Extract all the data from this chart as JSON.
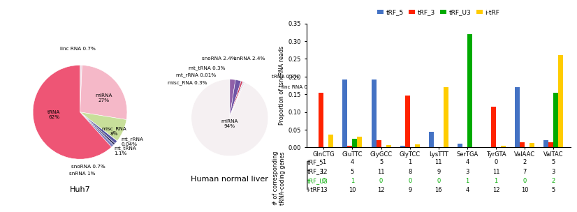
{
  "pie1_labels": [
    "linc RNA",
    "miRNA",
    "misc_RNA",
    "mt_rRNA",
    "mt_tRNA",
    "snoRNA",
    "snRNA",
    "tRNA"
  ],
  "pie1_values": [
    0.7,
    27.0,
    8.0,
    0.04,
    1.1,
    0.7,
    1.0,
    62.0
  ],
  "pie1_title": "Huh7",
  "pie1_colors": [
    "#f0dce6",
    "#f5b8c8",
    "#c8df9a",
    "#909090",
    "#5555a0",
    "#303060",
    "#8080c0",
    "#ee5575"
  ],
  "pie2_labels": [
    "snoRNA",
    "snRNA",
    "tRNA",
    "linc RNA",
    "mt_tRNA",
    "mt_rRNA",
    "misc_RNA",
    "miRNA"
  ],
  "pie2_values": [
    2.4,
    2.4,
    0.8,
    0.2,
    0.3,
    0.01,
    0.3,
    94.0
  ],
  "pie2_title": "Human normal liver",
  "pie2_colors": [
    "#9060a8",
    "#7055a5",
    "#cc4060",
    "#f0d0da",
    "#404080",
    "#888888",
    "#b090b8",
    "#f5f0f2"
  ],
  "bar_categories": [
    "GlnCTG",
    "GluTTC",
    "GlyGCC",
    "GlyTCC",
    "LysTTT",
    "SerTGA",
    "TyrGTA",
    "ValAAC",
    "ValTAC"
  ],
  "bar_tRF5": [
    0.0,
    0.192,
    0.191,
    0.005,
    0.045,
    0.01,
    0.0,
    0.17,
    0.02
  ],
  "bar_tRF3": [
    0.155,
    0.005,
    0.02,
    0.147,
    0.0,
    0.0,
    0.115,
    0.015,
    0.015
  ],
  "bar_tRFU3": [
    0.0,
    0.025,
    0.0,
    0.0,
    0.0,
    0.32,
    0.0,
    0.0,
    0.155
  ],
  "bar_itRF": [
    0.037,
    0.03,
    0.007,
    0.008,
    0.17,
    0.0,
    0.005,
    0.012,
    0.26
  ],
  "bar_color_tRF5": "#4472c4",
  "bar_color_tRF3": "#ff2200",
  "bar_color_tRFU3": "#00aa00",
  "bar_color_itRF": "#ffcc00",
  "table_rows": [
    "tRF_5",
    "tRF_3",
    "tRF_U3",
    "i-tRF"
  ],
  "table_row_colors": [
    "#000000",
    "#000000",
    "#00aa00",
    "#000000"
  ],
  "table_data": [
    [
      1,
      4,
      5,
      1,
      11,
      4,
      0,
      2,
      5
    ],
    [
      12,
      5,
      11,
      8,
      9,
      3,
      11,
      7,
      3
    ],
    [
      0,
      1,
      0,
      0,
      0,
      1,
      1,
      0,
      2
    ],
    [
      13,
      10,
      12,
      9,
      16,
      4,
      12,
      10,
      5
    ]
  ],
  "ylabel_bar": "Proportion of tsncRNA reads",
  "ylabel_table": "# of corresponding\ntRNA-coding genes",
  "ylim_bar": [
    0,
    0.35
  ],
  "yticks_bar": [
    0.0,
    0.05,
    0.1,
    0.15,
    0.2,
    0.25,
    0.3,
    0.35
  ]
}
